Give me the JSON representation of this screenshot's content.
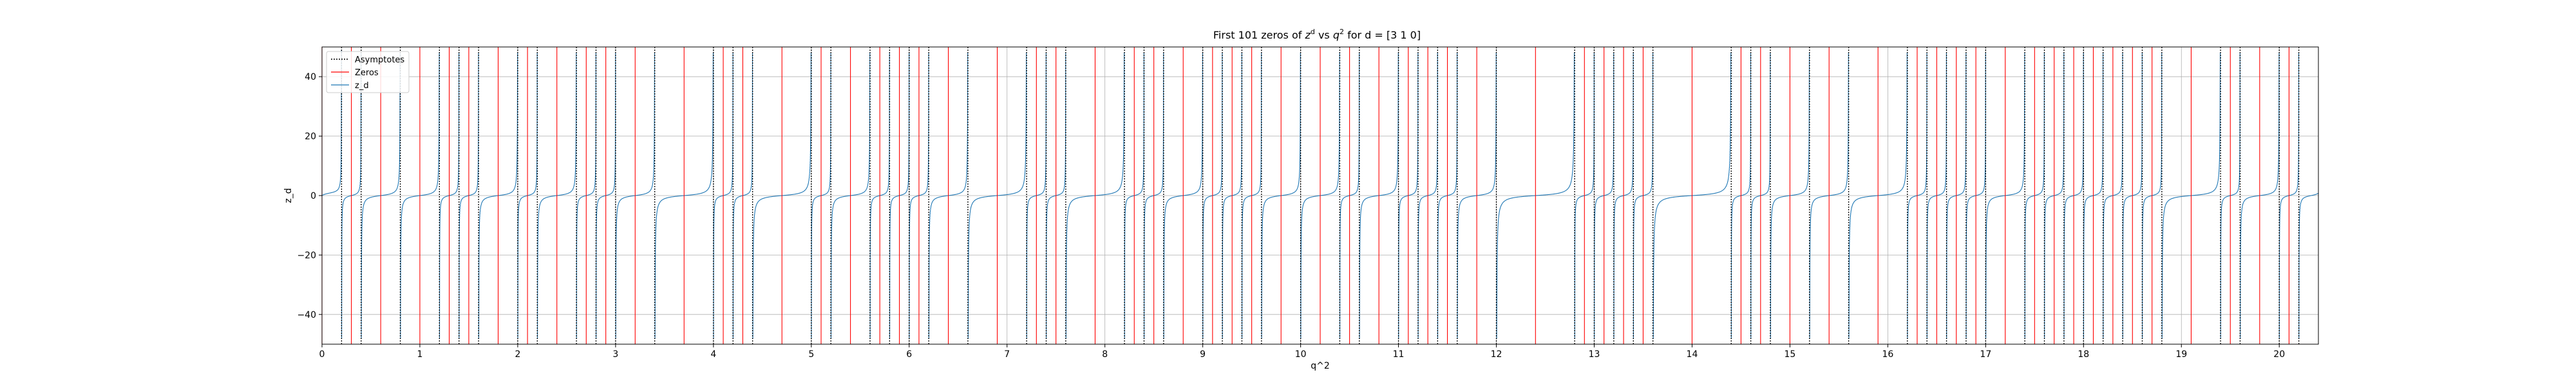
{
  "chart_data": {
    "type": "line",
    "title_prefix": "First 101 zeros of ",
    "title_z": "z",
    "title_z_sup": "d",
    "title_mid": " vs ",
    "title_q": "q",
    "title_q_sup": "2",
    "title_suffix": " for d = [3 1 0]",
    "xlabel": "q^2",
    "ylabel": "z_d",
    "xlim": [
      0,
      20.4
    ],
    "ylim": [
      -50,
      50
    ],
    "xticks": [
      0,
      1,
      2,
      3,
      4,
      5,
      6,
      7,
      8,
      9,
      10,
      11,
      12,
      13,
      14,
      15,
      16,
      17,
      18,
      19,
      20
    ],
    "yticks": [
      -40,
      -20,
      0,
      20,
      40
    ],
    "grid": true,
    "legend_position": "top-left",
    "legend": [
      {
        "label": "Asymptotes",
        "style": "dotted",
        "color": "#000000"
      },
      {
        "label": "Zeros",
        "style": "solid",
        "color": "#ff0000"
      },
      {
        "label": "z_d",
        "style": "solid",
        "color": "#1f77b4"
      }
    ],
    "colors": {
      "asymptote": "#000000",
      "zero": "#ff0000",
      "curve": "#1f77b4",
      "grid": "#b0b0b0"
    },
    "asymptotes": [
      0.2,
      0.4,
      0.8,
      1.2,
      1.4,
      1.6,
      2.0,
      2.2,
      2.6,
      2.8,
      3.0,
      3.4,
      4.0,
      4.2,
      4.4,
      5.0,
      5.2,
      5.6,
      5.8,
      6.0,
      6.2,
      6.6,
      7.2,
      7.4,
      7.6,
      8.2,
      8.4,
      8.6,
      9.0,
      9.2,
      9.4,
      9.6,
      10.0,
      10.4,
      10.6,
      11.0,
      11.2,
      11.4,
      11.6,
      12.0,
      12.8,
      13.0,
      13.2,
      13.4,
      13.6,
      14.4,
      14.6,
      14.8,
      15.2,
      15.6,
      16.2,
      16.4,
      16.6,
      16.8,
      17.0,
      17.4,
      17.6,
      17.8,
      18.0,
      18.2,
      18.4,
      18.6,
      18.8,
      19.4,
      19.6,
      20.0,
      20.2
    ],
    "zeros": [
      0.0,
      0.3,
      0.6,
      1.0,
      1.3,
      1.5,
      1.8,
      2.1,
      2.4,
      2.7,
      2.9,
      3.2,
      3.7,
      4.1,
      4.3,
      4.7,
      5.1,
      5.4,
      5.7,
      5.9,
      6.1,
      6.4,
      6.9,
      7.3,
      7.5,
      7.9,
      8.3,
      8.5,
      8.8,
      9.1,
      9.3,
      9.5,
      9.8,
      10.2,
      10.5,
      10.8,
      11.1,
      11.3,
      11.5,
      11.8,
      12.4,
      12.9,
      13.1,
      13.3,
      13.5,
      14.0,
      14.5,
      14.7,
      15.0,
      15.4,
      15.9,
      16.3,
      16.5,
      16.7,
      16.9,
      17.2,
      17.5,
      17.7,
      17.9,
      18.1,
      18.3,
      18.5,
      18.7,
      19.1,
      19.5,
      19.8,
      20.1
    ]
  }
}
